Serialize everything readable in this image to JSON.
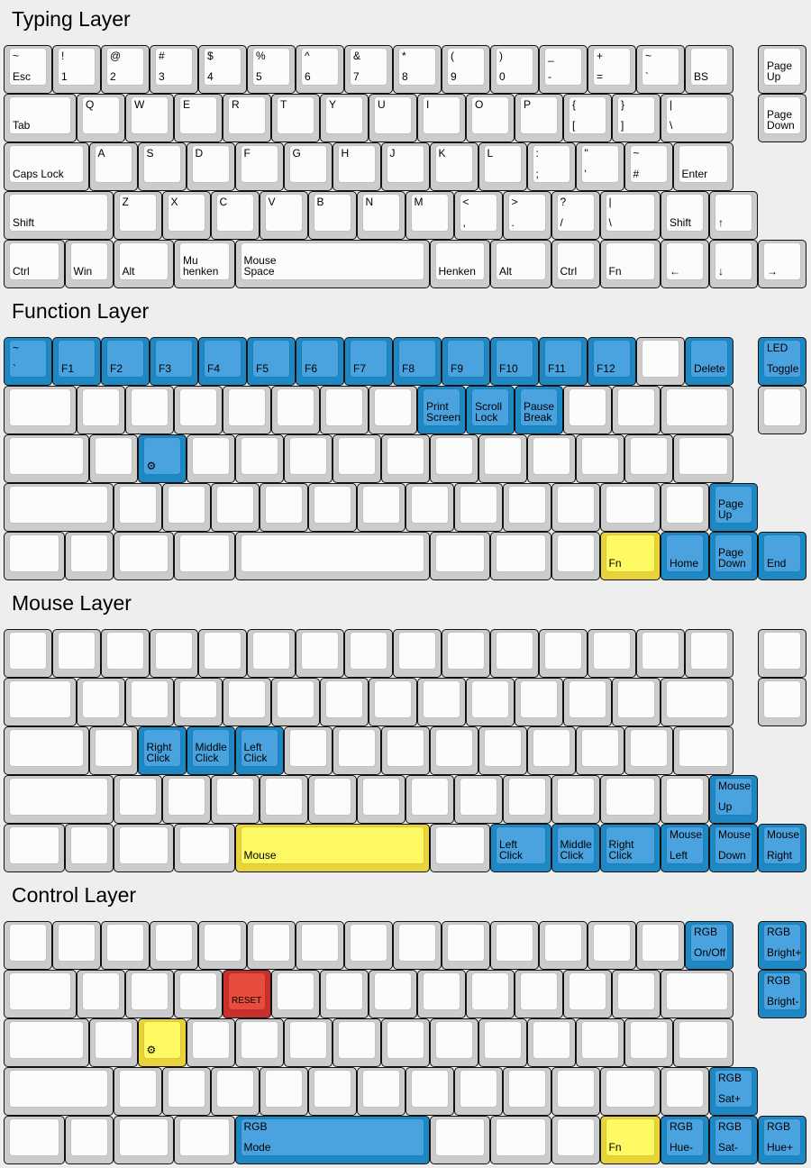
{
  "palette": {
    "white": {
      "outer": "#cccccc",
      "inner": "#fcfcfc"
    },
    "blue": {
      "outer": "#1e88c5",
      "inner": "#4aa3df"
    },
    "yellow": {
      "outer": "#e8d33a",
      "inner": "#fff964"
    },
    "red": {
      "outer": "#c9302c",
      "inner": "#e74c3c"
    }
  },
  "layers": [
    {
      "title": "Typing Layer",
      "rows": [
        [
          [
            "~",
            "Esc"
          ],
          [
            "!",
            "1"
          ],
          [
            "@",
            "2"
          ],
          [
            "#",
            "3"
          ],
          [
            "$",
            "4"
          ],
          [
            "%",
            "5"
          ],
          [
            "^",
            "6"
          ],
          [
            "&",
            "7"
          ],
          [
            "*",
            "8"
          ],
          [
            "(",
            "9"
          ],
          [
            ")",
            "0"
          ],
          [
            "_",
            "-"
          ],
          [
            "+",
            "="
          ],
          [
            "~",
            "`"
          ],
          [
            "",
            "BS"
          ],
          [
            "",
            "Page\nUp"
          ]
        ],
        [
          [
            "",
            "Tab"
          ],
          [
            "Q",
            ""
          ],
          [
            "W",
            ""
          ],
          [
            "E",
            ""
          ],
          [
            "R",
            ""
          ],
          [
            "T",
            ""
          ],
          [
            "Y",
            ""
          ],
          [
            "U",
            ""
          ],
          [
            "I",
            ""
          ],
          [
            "O",
            ""
          ],
          [
            "P",
            ""
          ],
          [
            "{",
            "["
          ],
          [
            "}",
            "]"
          ],
          [
            "|",
            "\\"
          ],
          [
            "",
            "Page\nDown"
          ]
        ],
        [
          [
            "",
            "Caps Lock"
          ],
          [
            "A",
            ""
          ],
          [
            "S",
            ""
          ],
          [
            "D",
            ""
          ],
          [
            "F",
            ""
          ],
          [
            "G",
            ""
          ],
          [
            "H",
            ""
          ],
          [
            "J",
            ""
          ],
          [
            "K",
            ""
          ],
          [
            "L",
            ""
          ],
          [
            ":",
            ";"
          ],
          [
            "\"",
            "'"
          ],
          [
            "~",
            "#"
          ],
          [
            "",
            "Enter"
          ]
        ],
        [
          [
            "",
            "Shift"
          ],
          [
            "Z",
            ""
          ],
          [
            "X",
            ""
          ],
          [
            "C",
            ""
          ],
          [
            "V",
            ""
          ],
          [
            "B",
            ""
          ],
          [
            "N",
            ""
          ],
          [
            "M",
            ""
          ],
          [
            "<",
            ","
          ],
          [
            ">",
            "."
          ],
          [
            "?",
            "/"
          ],
          [
            "|",
            "\\"
          ],
          [
            "",
            "Shift"
          ],
          [
            "",
            "↑"
          ]
        ],
        [
          [
            "",
            "Ctrl"
          ],
          [
            "",
            "Win"
          ],
          [
            "",
            "Alt"
          ],
          [
            "",
            "Mu\nhenken"
          ],
          [
            "",
            "Mouse\nSpace"
          ],
          [
            "",
            "Henken"
          ],
          [
            "",
            "Alt"
          ],
          [
            "",
            "Ctrl"
          ],
          [
            "",
            "Fn"
          ],
          [
            "",
            "←"
          ],
          [
            "",
            "↓"
          ],
          [
            "",
            "→"
          ]
        ]
      ]
    },
    {
      "title": "Function Layer",
      "rows": [
        [
          [
            "~",
            "`",
            "blue"
          ],
          [
            "",
            "F1",
            "blue"
          ],
          [
            "",
            "F2",
            "blue"
          ],
          [
            "",
            "F3",
            "blue"
          ],
          [
            "",
            "F4",
            "blue"
          ],
          [
            "",
            "F5",
            "blue"
          ],
          [
            "",
            "F6",
            "blue"
          ],
          [
            "",
            "F7",
            "blue"
          ],
          [
            "",
            "F8",
            "blue"
          ],
          [
            "",
            "F9",
            "blue"
          ],
          [
            "",
            "F10",
            "blue"
          ],
          [
            "",
            "F11",
            "blue"
          ],
          [
            "",
            "F12",
            "blue"
          ],
          [
            "",
            ""
          ],
          [
            "",
            "Delete",
            "blue"
          ],
          [
            "LED",
            "Toggle",
            "blue"
          ]
        ],
        [
          [
            "",
            ""
          ],
          [
            "",
            ""
          ],
          [
            "",
            ""
          ],
          [
            "",
            ""
          ],
          [
            "",
            ""
          ],
          [
            "",
            ""
          ],
          [
            "",
            ""
          ],
          [
            "",
            ""
          ],
          [
            "",
            "Print\nScreen",
            "blue"
          ],
          [
            "",
            "Scroll\nLock",
            "blue"
          ],
          [
            "",
            "Pause\nBreak",
            "blue"
          ],
          [
            "",
            ""
          ],
          [
            "",
            ""
          ],
          [
            "",
            ""
          ],
          [
            "",
            ""
          ]
        ],
        [
          [
            "",
            ""
          ],
          [
            "",
            ""
          ],
          [
            "",
            "⚙",
            "blue"
          ],
          [
            "",
            ""
          ],
          [
            "",
            ""
          ],
          [
            "",
            ""
          ],
          [
            "",
            ""
          ],
          [
            "",
            ""
          ],
          [
            "",
            ""
          ],
          [
            "",
            ""
          ],
          [
            "",
            ""
          ],
          [
            "",
            ""
          ],
          [
            "",
            ""
          ],
          [
            "",
            ""
          ]
        ],
        [
          [
            "",
            ""
          ],
          [
            "",
            ""
          ],
          [
            "",
            ""
          ],
          [
            "",
            ""
          ],
          [
            "",
            ""
          ],
          [
            "",
            ""
          ],
          [
            "",
            ""
          ],
          [
            "",
            ""
          ],
          [
            "",
            ""
          ],
          [
            "",
            ""
          ],
          [
            "",
            ""
          ],
          [
            "",
            ""
          ],
          [
            "",
            ""
          ],
          [
            "",
            "Page\nUp",
            "blue"
          ]
        ],
        [
          [
            "",
            ""
          ],
          [
            "",
            ""
          ],
          [
            "",
            ""
          ],
          [
            "",
            ""
          ],
          [
            "",
            ""
          ],
          [
            "",
            ""
          ],
          [
            "",
            ""
          ],
          [
            "",
            ""
          ],
          [
            "",
            "Fn",
            "yellow"
          ],
          [
            "",
            "Home",
            "blue"
          ],
          [
            "",
            "Page\nDown",
            "blue"
          ],
          [
            "",
            "End",
            "blue"
          ]
        ]
      ]
    },
    {
      "title": "Mouse Layer",
      "rows": [
        [
          [
            "",
            ""
          ],
          [
            "",
            ""
          ],
          [
            "",
            ""
          ],
          [
            "",
            ""
          ],
          [
            "",
            ""
          ],
          [
            "",
            ""
          ],
          [
            "",
            ""
          ],
          [
            "",
            ""
          ],
          [
            "",
            ""
          ],
          [
            "",
            ""
          ],
          [
            "",
            ""
          ],
          [
            "",
            ""
          ],
          [
            "",
            ""
          ],
          [
            "",
            ""
          ],
          [
            "",
            ""
          ],
          [
            "",
            ""
          ]
        ],
        [
          [
            "",
            ""
          ],
          [
            "",
            ""
          ],
          [
            "",
            ""
          ],
          [
            "",
            ""
          ],
          [
            "",
            ""
          ],
          [
            "",
            ""
          ],
          [
            "",
            ""
          ],
          [
            "",
            ""
          ],
          [
            "",
            ""
          ],
          [
            "",
            ""
          ],
          [
            "",
            ""
          ],
          [
            "",
            ""
          ],
          [
            "",
            ""
          ],
          [
            "",
            ""
          ],
          [
            "",
            ""
          ]
        ],
        [
          [
            "",
            ""
          ],
          [
            "",
            ""
          ],
          [
            "",
            "Right\nClick",
            "blue"
          ],
          [
            "",
            "Middle\nClick",
            "blue"
          ],
          [
            "",
            "Left\nClick",
            "blue"
          ],
          [
            "",
            ""
          ],
          [
            "",
            ""
          ],
          [
            "",
            ""
          ],
          [
            "",
            ""
          ],
          [
            "",
            ""
          ],
          [
            "",
            ""
          ],
          [
            "",
            ""
          ],
          [
            "",
            ""
          ],
          [
            "",
            ""
          ]
        ],
        [
          [
            "",
            ""
          ],
          [
            "",
            ""
          ],
          [
            "",
            ""
          ],
          [
            "",
            ""
          ],
          [
            "",
            ""
          ],
          [
            "",
            ""
          ],
          [
            "",
            ""
          ],
          [
            "",
            ""
          ],
          [
            "",
            ""
          ],
          [
            "",
            ""
          ],
          [
            "",
            ""
          ],
          [
            "",
            ""
          ],
          [
            "",
            ""
          ],
          [
            "Mouse",
            "Up",
            "blue"
          ]
        ],
        [
          [
            "",
            ""
          ],
          [
            "",
            ""
          ],
          [
            "",
            ""
          ],
          [
            "",
            ""
          ],
          [
            "",
            "Mouse",
            "yellow"
          ],
          [
            "",
            ""
          ],
          [
            "",
            "Left\nClick",
            "blue"
          ],
          [
            "",
            "Middle\nClick",
            "blue"
          ],
          [
            "",
            "Right\nClick",
            "blue"
          ],
          [
            "Mouse",
            "Left",
            "blue"
          ],
          [
            "Mouse",
            "Down",
            "blue"
          ],
          [
            "Mouse",
            "Right",
            "blue"
          ]
        ]
      ]
    },
    {
      "title": "Control Layer",
      "rows": [
        [
          [
            "",
            ""
          ],
          [
            "",
            ""
          ],
          [
            "",
            ""
          ],
          [
            "",
            ""
          ],
          [
            "",
            ""
          ],
          [
            "",
            ""
          ],
          [
            "",
            ""
          ],
          [
            "",
            ""
          ],
          [
            "",
            ""
          ],
          [
            "",
            ""
          ],
          [
            "",
            ""
          ],
          [
            "",
            ""
          ],
          [
            "",
            ""
          ],
          [
            "",
            ""
          ],
          [
            "RGB",
            "On/Off",
            "blue"
          ],
          [
            "RGB",
            "Bright+",
            "blue"
          ]
        ],
        [
          [
            "",
            ""
          ],
          [
            "",
            ""
          ],
          [
            "",
            ""
          ],
          [
            "",
            ""
          ],
          [
            "",
            "RESET",
            "red"
          ],
          [
            "",
            ""
          ],
          [
            "",
            ""
          ],
          [
            "",
            ""
          ],
          [
            "",
            ""
          ],
          [
            "",
            ""
          ],
          [
            "",
            ""
          ],
          [
            "",
            ""
          ],
          [
            "",
            ""
          ],
          [
            "",
            ""
          ],
          [
            "RGB",
            "Bright-",
            "blue"
          ]
        ],
        [
          [
            "",
            ""
          ],
          [
            "",
            ""
          ],
          [
            "",
            "⚙",
            "yellow"
          ],
          [
            "",
            ""
          ],
          [
            "",
            ""
          ],
          [
            "",
            ""
          ],
          [
            "",
            ""
          ],
          [
            "",
            ""
          ],
          [
            "",
            ""
          ],
          [
            "",
            ""
          ],
          [
            "",
            ""
          ],
          [
            "",
            ""
          ],
          [
            "",
            ""
          ],
          [
            "",
            ""
          ]
        ],
        [
          [
            "",
            ""
          ],
          [
            "",
            ""
          ],
          [
            "",
            ""
          ],
          [
            "",
            ""
          ],
          [
            "",
            ""
          ],
          [
            "",
            ""
          ],
          [
            "",
            ""
          ],
          [
            "",
            ""
          ],
          [
            "",
            ""
          ],
          [
            "",
            ""
          ],
          [
            "",
            ""
          ],
          [
            "",
            ""
          ],
          [
            "",
            ""
          ],
          [
            "RGB",
            "Sat+",
            "blue"
          ]
        ],
        [
          [
            "",
            ""
          ],
          [
            "",
            ""
          ],
          [
            "",
            ""
          ],
          [
            "",
            ""
          ],
          [
            "RGB",
            "Mode",
            "blue"
          ],
          [
            "",
            ""
          ],
          [
            "",
            ""
          ],
          [
            "",
            ""
          ],
          [
            "",
            "Fn",
            "yellow"
          ],
          [
            "RGB",
            "Hue-",
            "blue"
          ],
          [
            "RGB",
            "Sat-",
            "blue"
          ],
          [
            "RGB",
            "Hue+",
            "blue"
          ]
        ]
      ]
    }
  ]
}
